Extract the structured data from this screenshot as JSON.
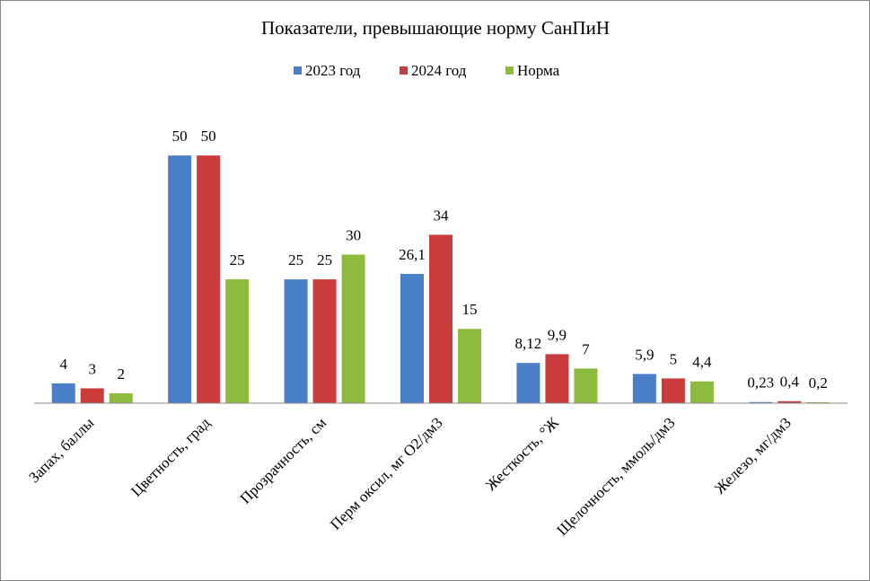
{
  "chart_data": {
    "type": "bar",
    "title": "Показатели, превышающие норму СанПиН",
    "categories": [
      "Запах, баллы",
      "Цветность, град",
      "Прозрачность, см",
      "Перм оксил, мг О2/дм3",
      "Жесткость, °Ж",
      "Щелочность, ммоль/дм3",
      "Железо, мг/дм3"
    ],
    "series": [
      {
        "name": "2023 год",
        "color": "#4a7ec9",
        "values": [
          4,
          50,
          25,
          26.1,
          8.12,
          5.9,
          0.23
        ],
        "value_labels": [
          null,
          null,
          null,
          "26,1",
          "8,12",
          "5,9",
          "0,23"
        ]
      },
      {
        "name": "2024 год",
        "color": "#cb3b3b",
        "values": [
          3,
          50,
          25,
          34,
          9.9,
          5,
          0.4
        ],
        "value_labels": [
          null,
          null,
          null,
          null,
          "9,9",
          null,
          "0,4"
        ]
      },
      {
        "name": "Норма",
        "color": "#8dbb3d",
        "values": [
          2,
          25,
          30,
          15,
          7,
          4.4,
          0.2
        ],
        "value_labels": [
          null,
          null,
          null,
          null,
          null,
          "4,4",
          "0,2"
        ]
      }
    ],
    "ylim": [
      0,
      60
    ],
    "legend": "top"
  }
}
